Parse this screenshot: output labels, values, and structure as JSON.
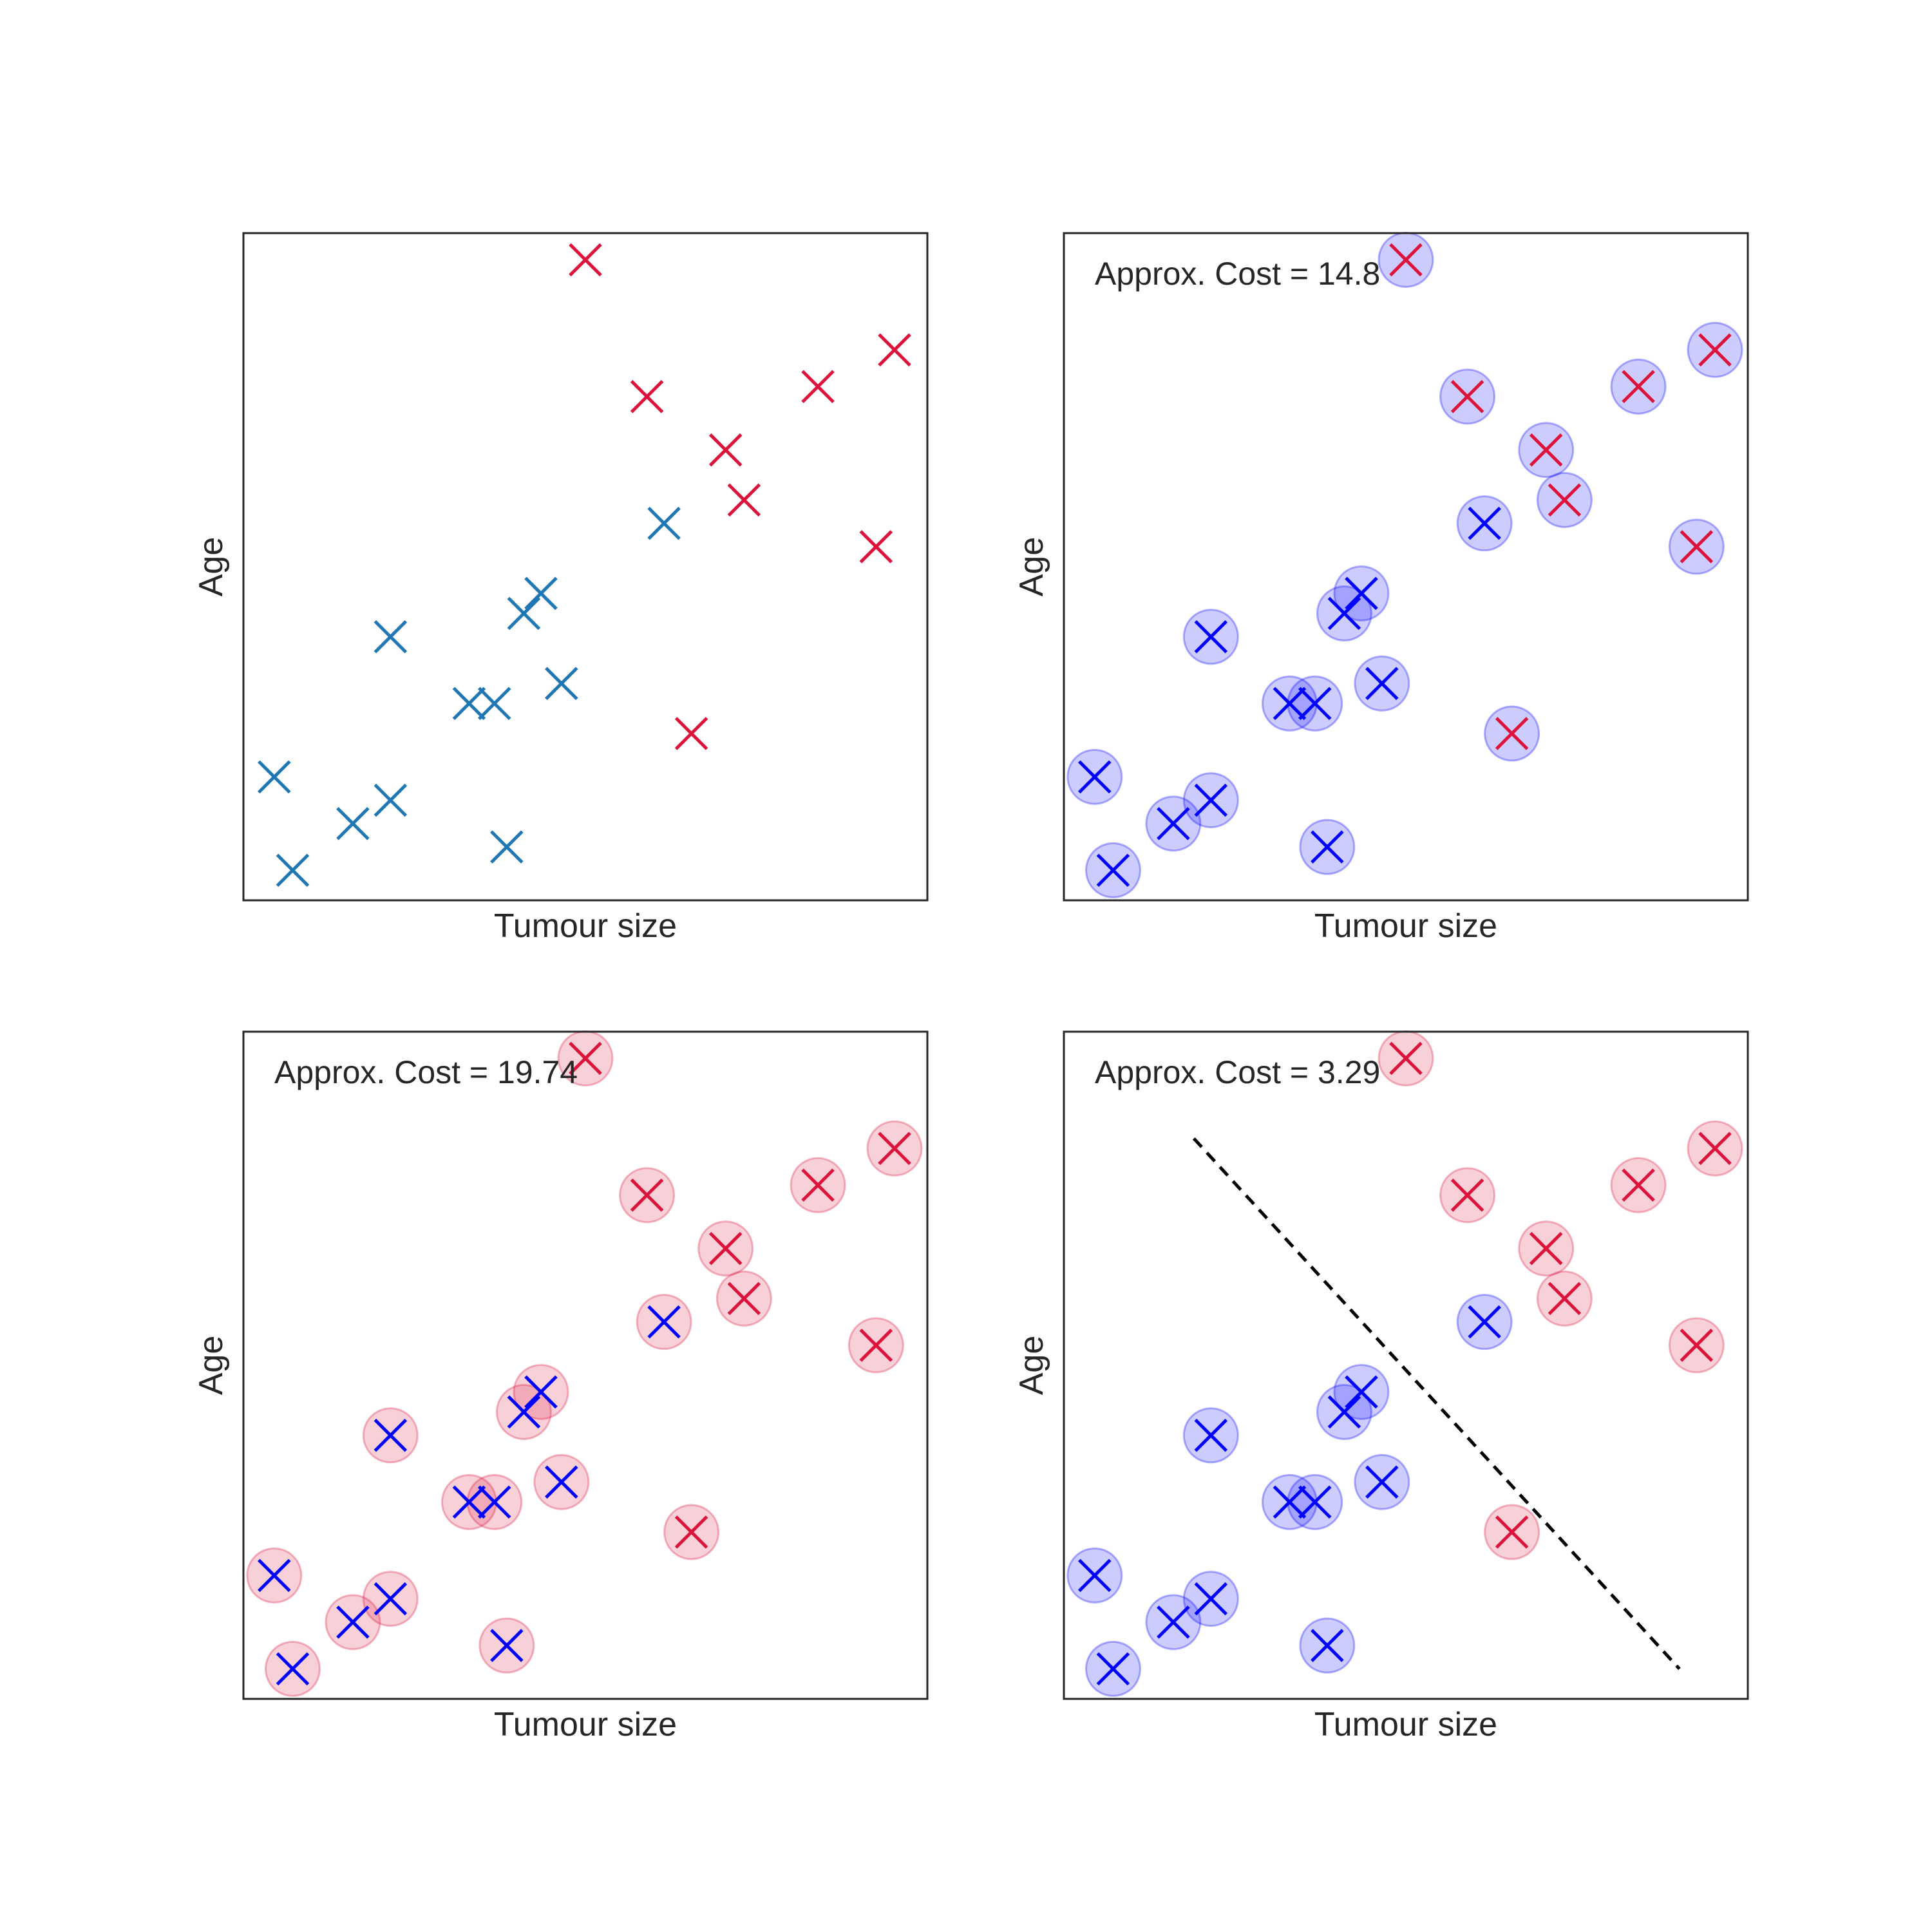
{
  "colors": {
    "benign_plain": "#1f77b4",
    "benign": "#0000ff",
    "malignant": "#dc143c",
    "circle_benign": "#0000ff",
    "circle_malignant": "#dc143c",
    "frame": "#262626",
    "boundary": "#000000"
  },
  "chart_data": [
    {
      "type": "scatter",
      "xlabel": "Tumour size",
      "ylabel": "Age",
      "xlim": [
        0,
        10
      ],
      "ylim": [
        0,
        10
      ],
      "cost_text": "",
      "circles": "none",
      "benign_color": "benign_plain",
      "series": [
        {
          "class": "benign",
          "x": [
            0.45,
            0.72,
            1.6,
            2.15,
            2.15,
            3.3,
            3.67,
            3.85,
            4.1,
            4.35,
            4.65,
            6.15
          ],
          "y": [
            1.85,
            0.45,
            1.15,
            1.5,
            3.95,
            2.95,
            2.95,
            0.8,
            4.3,
            4.6,
            3.25,
            5.65
          ]
        },
        {
          "class": "malignant",
          "x": [
            5.0,
            5.9,
            6.55,
            7.05,
            7.32,
            8.4,
            9.25,
            9.52
          ],
          "y": [
            9.6,
            7.55,
            2.5,
            6.75,
            6.0,
            7.7,
            5.3,
            8.25
          ]
        }
      ]
    },
    {
      "type": "scatter",
      "xlabel": "Tumour size",
      "ylabel": "Age",
      "xlim": [
        0,
        10
      ],
      "ylim": [
        0,
        10
      ],
      "cost_text": "Approx. Cost = 14.8",
      "circles": "benign",
      "benign_color": "benign",
      "series": [
        {
          "class": "benign",
          "x": [
            0.45,
            0.72,
            1.6,
            2.15,
            2.15,
            3.3,
            3.67,
            3.85,
            4.1,
            4.35,
            4.65,
            6.15
          ],
          "y": [
            1.85,
            0.45,
            1.15,
            1.5,
            3.95,
            2.95,
            2.95,
            0.8,
            4.3,
            4.6,
            3.25,
            5.65
          ]
        },
        {
          "class": "malignant",
          "x": [
            5.0,
            5.9,
            6.55,
            7.05,
            7.32,
            8.4,
            9.25,
            9.52
          ],
          "y": [
            9.6,
            7.55,
            2.5,
            6.75,
            6.0,
            7.7,
            5.3,
            8.25
          ]
        }
      ]
    },
    {
      "type": "scatter",
      "xlabel": "Tumour size",
      "ylabel": "Age",
      "xlim": [
        0,
        10
      ],
      "ylim": [
        0,
        10
      ],
      "cost_text": "Approx. Cost = 19.74",
      "circles": "malignant",
      "benign_color": "benign",
      "series": [
        {
          "class": "benign",
          "x": [
            0.45,
            0.72,
            1.6,
            2.15,
            2.15,
            3.3,
            3.67,
            3.85,
            4.1,
            4.35,
            4.65,
            6.15
          ],
          "y": [
            1.85,
            0.45,
            1.15,
            1.5,
            3.95,
            2.95,
            2.95,
            0.8,
            4.3,
            4.6,
            3.25,
            5.65
          ]
        },
        {
          "class": "malignant",
          "x": [
            5.0,
            5.9,
            6.55,
            7.05,
            7.32,
            8.4,
            9.25,
            9.52
          ],
          "y": [
            9.6,
            7.55,
            2.5,
            6.75,
            6.0,
            7.7,
            5.3,
            8.25
          ]
        }
      ]
    },
    {
      "type": "scatter",
      "xlabel": "Tumour size",
      "ylabel": "Age",
      "xlim": [
        0,
        10
      ],
      "ylim": [
        0,
        10
      ],
      "cost_text": "Approx. Cost = 3.29",
      "circles": "true_class",
      "benign_color": "benign",
      "decision_boundary": {
        "x": [
          1.9,
          9.0
        ],
        "y": [
          8.4,
          0.45
        ],
        "style": "dashed"
      },
      "series": [
        {
          "class": "benign",
          "x": [
            0.45,
            0.72,
            1.6,
            2.15,
            2.15,
            3.3,
            3.67,
            3.85,
            4.1,
            4.35,
            4.65,
            6.15
          ],
          "y": [
            1.85,
            0.45,
            1.15,
            1.5,
            3.95,
            2.95,
            2.95,
            0.8,
            4.3,
            4.6,
            3.25,
            5.65
          ]
        },
        {
          "class": "malignant",
          "x": [
            5.0,
            5.9,
            6.55,
            7.05,
            7.32,
            8.4,
            9.25,
            9.52
          ],
          "y": [
            9.6,
            7.55,
            2.5,
            6.75,
            6.0,
            7.7,
            5.3,
            8.25
          ]
        }
      ]
    }
  ]
}
